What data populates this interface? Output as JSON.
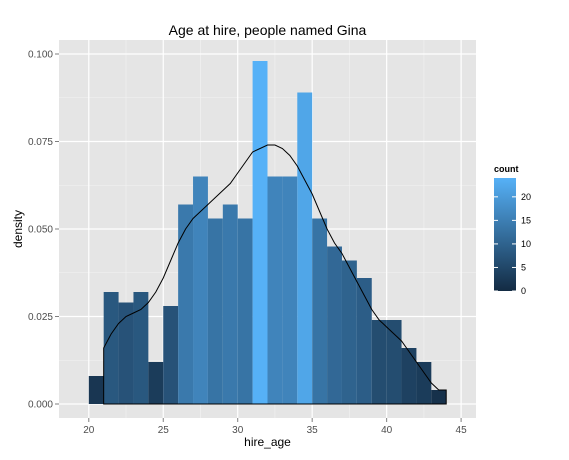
{
  "chart_data": {
    "type": "bar",
    "title": "Age at hire, people named Gina",
    "xlabel": "hire_age",
    "ylabel": "density",
    "xlim": [
      18,
      46
    ],
    "ylim": [
      -0.004,
      0.104
    ],
    "xticks": [
      20,
      25,
      30,
      35,
      40,
      45
    ],
    "yticks": [
      0.0,
      0.025,
      0.05,
      0.075,
      0.1
    ],
    "xtick_labels": [
      "20",
      "25",
      "30",
      "35",
      "40",
      "45"
    ],
    "ytick_labels": [
      "0.000",
      "0.025",
      "0.050",
      "0.075",
      "0.100"
    ],
    "grid": true,
    "legend": {
      "title": "count",
      "position": "right",
      "ticks": [
        0,
        5,
        10,
        15,
        20
      ],
      "tick_labels": [
        "0",
        "5",
        "10",
        "15",
        "20"
      ],
      "max": 24,
      "color_low": "#132b43",
      "color_high": "#56b1f7"
    },
    "bins": [
      {
        "x_start": 20,
        "x_end": 21,
        "density": 0.008,
        "count": 2
      },
      {
        "x_start": 21,
        "x_end": 22,
        "density": 0.032,
        "count": 8
      },
      {
        "x_start": 22,
        "x_end": 23,
        "density": 0.029,
        "count": 7
      },
      {
        "x_start": 23,
        "x_end": 24,
        "density": 0.032,
        "count": 8
      },
      {
        "x_start": 24,
        "x_end": 25,
        "density": 0.012,
        "count": 3
      },
      {
        "x_start": 25,
        "x_end": 26,
        "density": 0.028,
        "count": 7
      },
      {
        "x_start": 26,
        "x_end": 27,
        "density": 0.057,
        "count": 14
      },
      {
        "x_start": 27,
        "x_end": 28,
        "density": 0.065,
        "count": 16
      },
      {
        "x_start": 28,
        "x_end": 29,
        "density": 0.053,
        "count": 13
      },
      {
        "x_start": 29,
        "x_end": 30,
        "density": 0.057,
        "count": 14
      },
      {
        "x_start": 30,
        "x_end": 31,
        "density": 0.053,
        "count": 13
      },
      {
        "x_start": 31,
        "x_end": 32,
        "density": 0.098,
        "count": 24
      },
      {
        "x_start": 32,
        "x_end": 33,
        "density": 0.065,
        "count": 16
      },
      {
        "x_start": 33,
        "x_end": 34,
        "density": 0.065,
        "count": 16
      },
      {
        "x_start": 34,
        "x_end": 35,
        "density": 0.089,
        "count": 22
      },
      {
        "x_start": 35,
        "x_end": 36,
        "density": 0.053,
        "count": 13
      },
      {
        "x_start": 36,
        "x_end": 37,
        "density": 0.045,
        "count": 11
      },
      {
        "x_start": 37,
        "x_end": 38,
        "density": 0.041,
        "count": 10
      },
      {
        "x_start": 38,
        "x_end": 39,
        "density": 0.036,
        "count": 9
      },
      {
        "x_start": 39,
        "x_end": 40,
        "density": 0.024,
        "count": 6
      },
      {
        "x_start": 40,
        "x_end": 41,
        "density": 0.024,
        "count": 6
      },
      {
        "x_start": 41,
        "x_end": 42,
        "density": 0.016,
        "count": 4
      },
      {
        "x_start": 42,
        "x_end": 43,
        "density": 0.012,
        "count": 3
      },
      {
        "x_start": 43,
        "x_end": 44,
        "density": 0.004,
        "count": 1
      }
    ],
    "density_curve": {
      "x": [
        21,
        21.5,
        22,
        22.5,
        23,
        23.5,
        24,
        24.5,
        25,
        25.5,
        26,
        26.5,
        27,
        27.5,
        28,
        28.5,
        29,
        29.5,
        30,
        30.5,
        31,
        31.5,
        32,
        32.5,
        33,
        33.5,
        34,
        34.5,
        35,
        35.5,
        36,
        36.5,
        37,
        37.5,
        38,
        38.5,
        39,
        39.5,
        40,
        40.5,
        41,
        41.5,
        42,
        42.5,
        43,
        43.5,
        44
      ],
      "y": [
        0.016,
        0.02,
        0.023,
        0.025,
        0.026,
        0.027,
        0.029,
        0.032,
        0.036,
        0.041,
        0.046,
        0.05,
        0.053,
        0.055,
        0.057,
        0.059,
        0.061,
        0.063,
        0.066,
        0.069,
        0.072,
        0.073,
        0.074,
        0.074,
        0.073,
        0.071,
        0.068,
        0.064,
        0.06,
        0.055,
        0.05,
        0.046,
        0.043,
        0.039,
        0.035,
        0.031,
        0.027,
        0.024,
        0.022,
        0.02,
        0.018,
        0.015,
        0.012,
        0.009,
        0.006,
        0.004,
        0.004
      ]
    }
  }
}
